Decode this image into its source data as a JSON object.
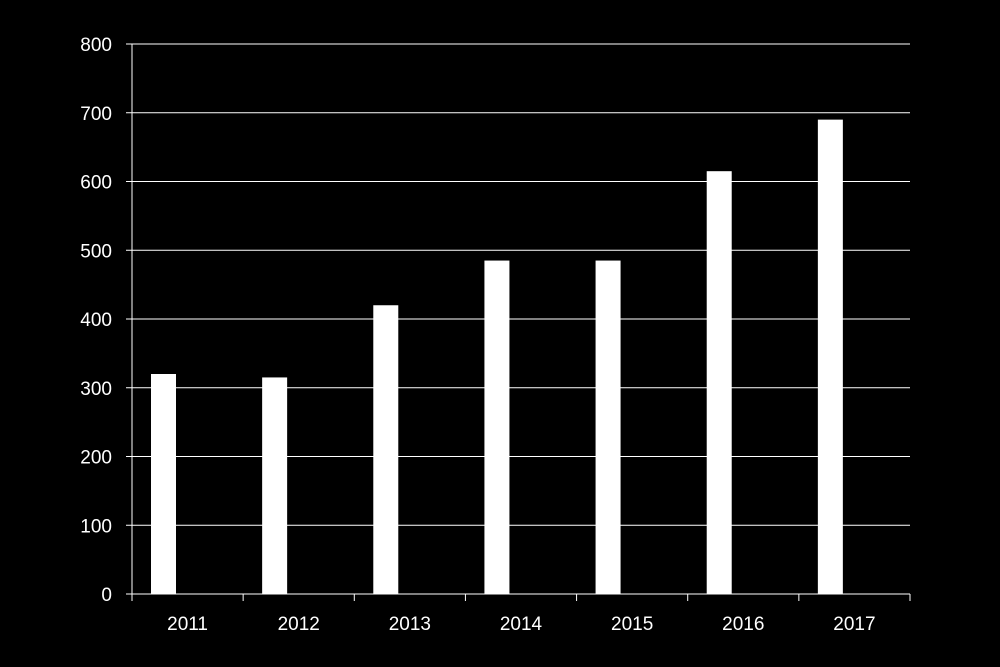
{
  "chart_data": {
    "type": "bar",
    "categories": [
      "2011",
      "2012",
      "2013",
      "2014",
      "2015",
      "2016",
      "2017"
    ],
    "values": [
      320,
      315,
      420,
      485,
      485,
      615,
      690
    ],
    "title": "",
    "xlabel": "",
    "ylabel": "",
    "ylim": [
      0,
      800
    ],
    "yticks": [
      0,
      100,
      200,
      300,
      400,
      500,
      600,
      700,
      800
    ],
    "ytick_labels": [
      "0",
      "100",
      "200",
      "300",
      "400",
      "500",
      "600",
      "700",
      "800"
    ],
    "grid": true,
    "legend": "none",
    "colors": {
      "background": "#000000",
      "bar": "#ffffff",
      "grid": "#ffffff",
      "axis": "#ffffff",
      "text": "#ffffff"
    }
  }
}
